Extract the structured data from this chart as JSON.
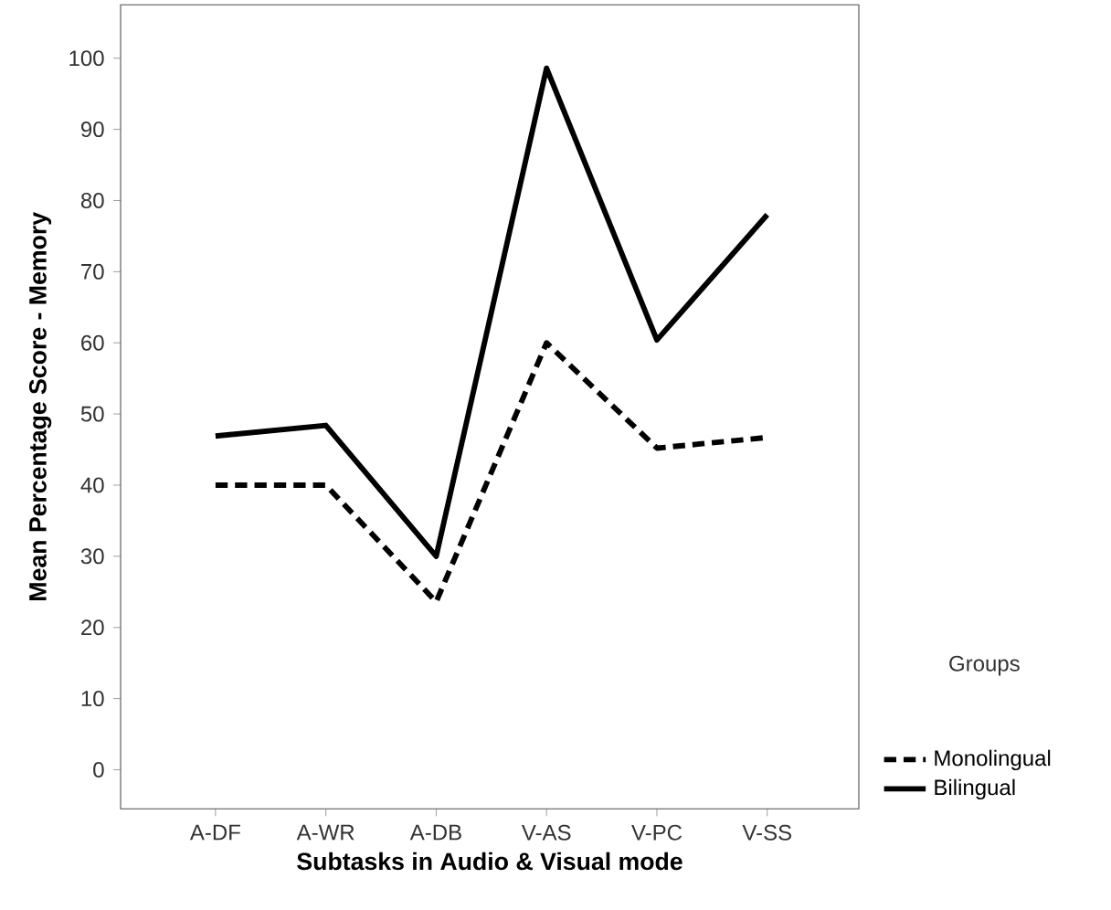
{
  "chart_data": {
    "type": "line",
    "xlabel": "Subtasks in Audio & Visual mode",
    "ylabel": "Mean Percentage Score - Memory",
    "categories": [
      "A-DF",
      "A-WR",
      "A-DB",
      "V-AS",
      "V-PC",
      "V-SS"
    ],
    "series": [
      {
        "name": "Monolingual",
        "color": "#000000",
        "line_style": "dashed",
        "values": [
          40,
          40,
          23.6,
          60,
          45.2,
          46.7
        ]
      },
      {
        "name": "Bilingual",
        "color": "#000000",
        "line_style": "solid",
        "values": [
          46.9,
          48.4,
          30,
          98.6,
          60.4,
          78
        ]
      }
    ],
    "ylim": [
      -5.5,
      107.5
    ],
    "yticks": [
      0,
      10,
      20,
      30,
      40,
      50,
      60,
      70,
      80,
      90,
      100
    ],
    "legend_title": "Groups",
    "legend": "right",
    "grid": false,
    "marker": "none"
  }
}
